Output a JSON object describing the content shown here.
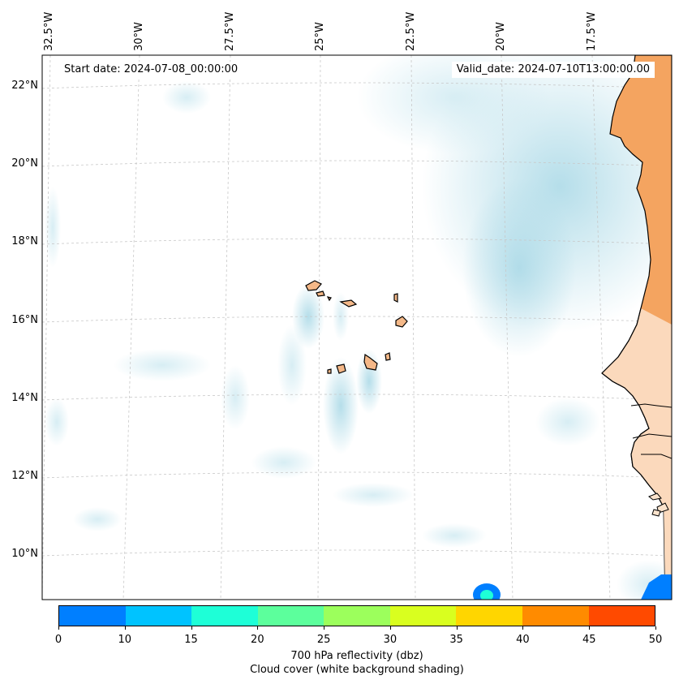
{
  "map": {
    "start_date_text": "Start date: 2024-07-08_00:00:00",
    "valid_date_text": "Valid_date: 2024-07-10T13:00:00.00",
    "lon_labels": [
      "32.5°W",
      "30°W",
      "27.5°W",
      "25°W",
      "22.5°W",
      "20°W",
      "17.5°W"
    ],
    "lat_labels": [
      "22°N",
      "20°N",
      "18°N",
      "16°N",
      "14°N",
      "12°N",
      "10°N"
    ],
    "colors": {
      "land": "#f4a460",
      "land_light": "#fbe3cc",
      "cloud": "#a8d8e6",
      "coast": "#000000",
      "grid": "#c8c8c8"
    },
    "features": [
      "Cape Verde islands",
      "West African coast",
      "cloud cover shading"
    ]
  },
  "colorbar": {
    "ticks": [
      "0",
      "10",
      "15",
      "20",
      "25",
      "30",
      "35",
      "40",
      "45",
      "50"
    ],
    "colors": [
      "#007fff",
      "#00c3ff",
      "#1effd7",
      "#5cff9c",
      "#9cff5c",
      "#d9ff1f",
      "#ffd600",
      "#ff8b00",
      "#ff4a00"
    ],
    "label": "700 hPa reflectivity (dbz)",
    "sublabel": "Cloud cover (white background shading)"
  }
}
